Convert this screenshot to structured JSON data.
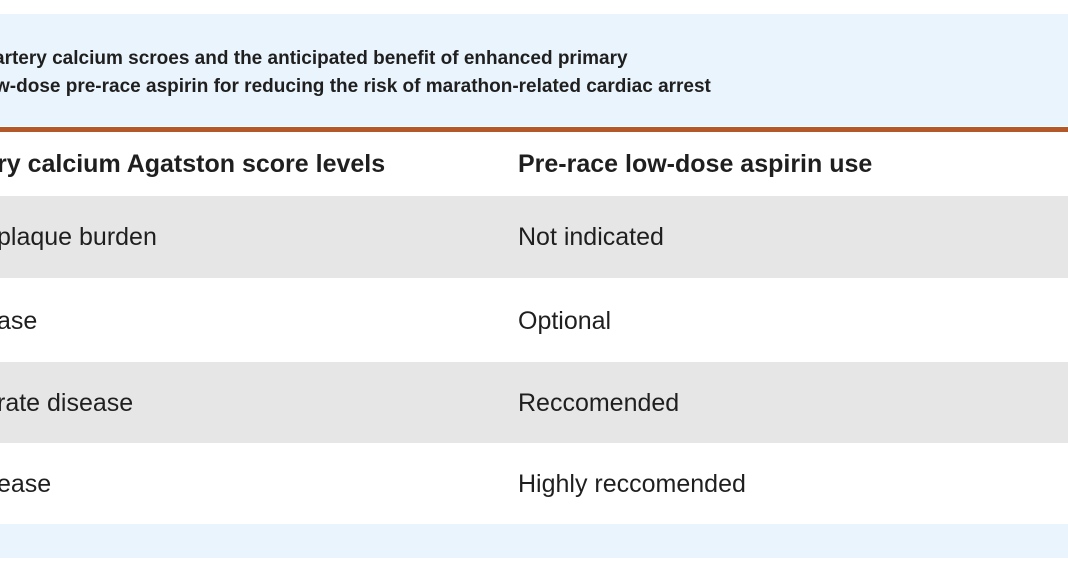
{
  "caption": {
    "line1": "artery calcium scroes and the anticipated benefit of enhanced primary",
    "line2": "w-dose pre-race aspirin for reducing the risk of marathon-related cardiac arrest"
  },
  "table": {
    "headers": [
      "ry calcium Agatston score levels",
      "Pre-race low-dose aspirin use"
    ],
    "rows": [
      [
        "plaque burden",
        "Not indicated"
      ],
      [
        "ase",
        "Optional"
      ],
      [
        "rate disease",
        "Reccomended"
      ],
      [
        "ease",
        "Highly reccomended"
      ]
    ]
  },
  "colors": {
    "caption_bg": "#eaf4fc",
    "accent_rule": "#b4582a",
    "row_shade": "#e6e6e6"
  }
}
